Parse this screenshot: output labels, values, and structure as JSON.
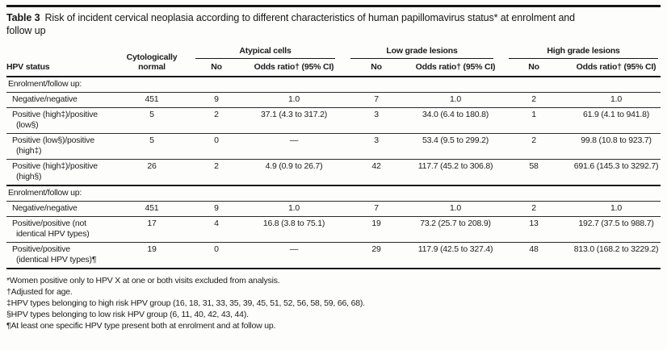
{
  "colors": {
    "ink": "#1c1c1c",
    "rule": "#161616",
    "background": "#fdfdfc"
  },
  "caption": {
    "label": "Table 3",
    "text": "Risk of incident cervical neoplasia according to different characteristics of human papillomavirus status* at enrolment and\nfollow up"
  },
  "table": {
    "col_headers": {
      "hpv_status": "HPV status",
      "cytologically_normal": "Cytologically\nnormal",
      "groups": [
        {
          "label": "Atypical cells",
          "no": "No",
          "or": "Odds ratio† (95% CI)"
        },
        {
          "label": "Low grade lesions",
          "no": "No",
          "or": "Odds ratio† (95% CI)"
        },
        {
          "label": "High grade lesions",
          "no": "No",
          "or": "Odds ratio† (95% CI)"
        }
      ]
    },
    "sections": [
      {
        "header": "Enrolment/follow up:",
        "rows": [
          {
            "label": "Negative/negative",
            "cyto": "451",
            "cells": [
              "9",
              "1.0",
              "7",
              "1.0",
              "2",
              "1.0"
            ]
          },
          {
            "label": "Positive (high‡)/positive\n(low§)",
            "cyto": "5",
            "cells": [
              "2",
              "37.1 (4.3 to 317.2)",
              "3",
              "34.0 (6.4 to 180.8)",
              "1",
              "61.9 (4.1 to 941.8)"
            ]
          },
          {
            "label": "Positive (low§)/positive\n(high‡)",
            "cyto": "5",
            "cells": [
              "0",
              "—",
              "3",
              "53.4 (9.5 to 299.2)",
              "2",
              "99.8 (10.8 to 923.7)"
            ]
          },
          {
            "label": "Positive (high‡)/positive\n(high§)",
            "cyto": "26",
            "cells": [
              "2",
              "4.9 (0.9 to 26.7)",
              "42",
              "117.7 (45.2 to 306.8)",
              "58",
              "691.6 (145.3 to 3292.7)"
            ]
          }
        ]
      },
      {
        "header": "Enrolment/follow up:",
        "rows": [
          {
            "label": "Negative/negative",
            "cyto": "451",
            "cells": [
              "9",
              "1.0",
              "7",
              "1.0",
              "2",
              "1.0"
            ]
          },
          {
            "label": "Positive/positive (not\nidentical HPV types)",
            "cyto": "17",
            "cells": [
              "4",
              "16.8 (3.8 to 75.1)",
              "19",
              "73.2 (25.7 to 208.9)",
              "13",
              "192.7 (37.5 to 988.7)"
            ]
          },
          {
            "label": "Positive/positive\n(identical HPV types)¶",
            "cyto": "19",
            "cells": [
              "0",
              "—",
              "29",
              "117.9 (42.5 to 327.4)",
              "48",
              "813.0 (168.2 to 3229.2)"
            ]
          }
        ]
      }
    ]
  },
  "footnotes": [
    "*Women positive only to HPV X at one or both visits excluded from analysis.",
    "†Adjusted for age.",
    "‡HPV types belonging to high risk HPV group (16, 18, 31, 33, 35, 39, 45, 51, 52, 56, 58, 59, 66, 68).",
    "§HPV types belonging to low risk HPV group (6, 11, 40, 42, 43, 44).",
    "¶At least one specific HPV type present both at enrolment and at follow up."
  ]
}
